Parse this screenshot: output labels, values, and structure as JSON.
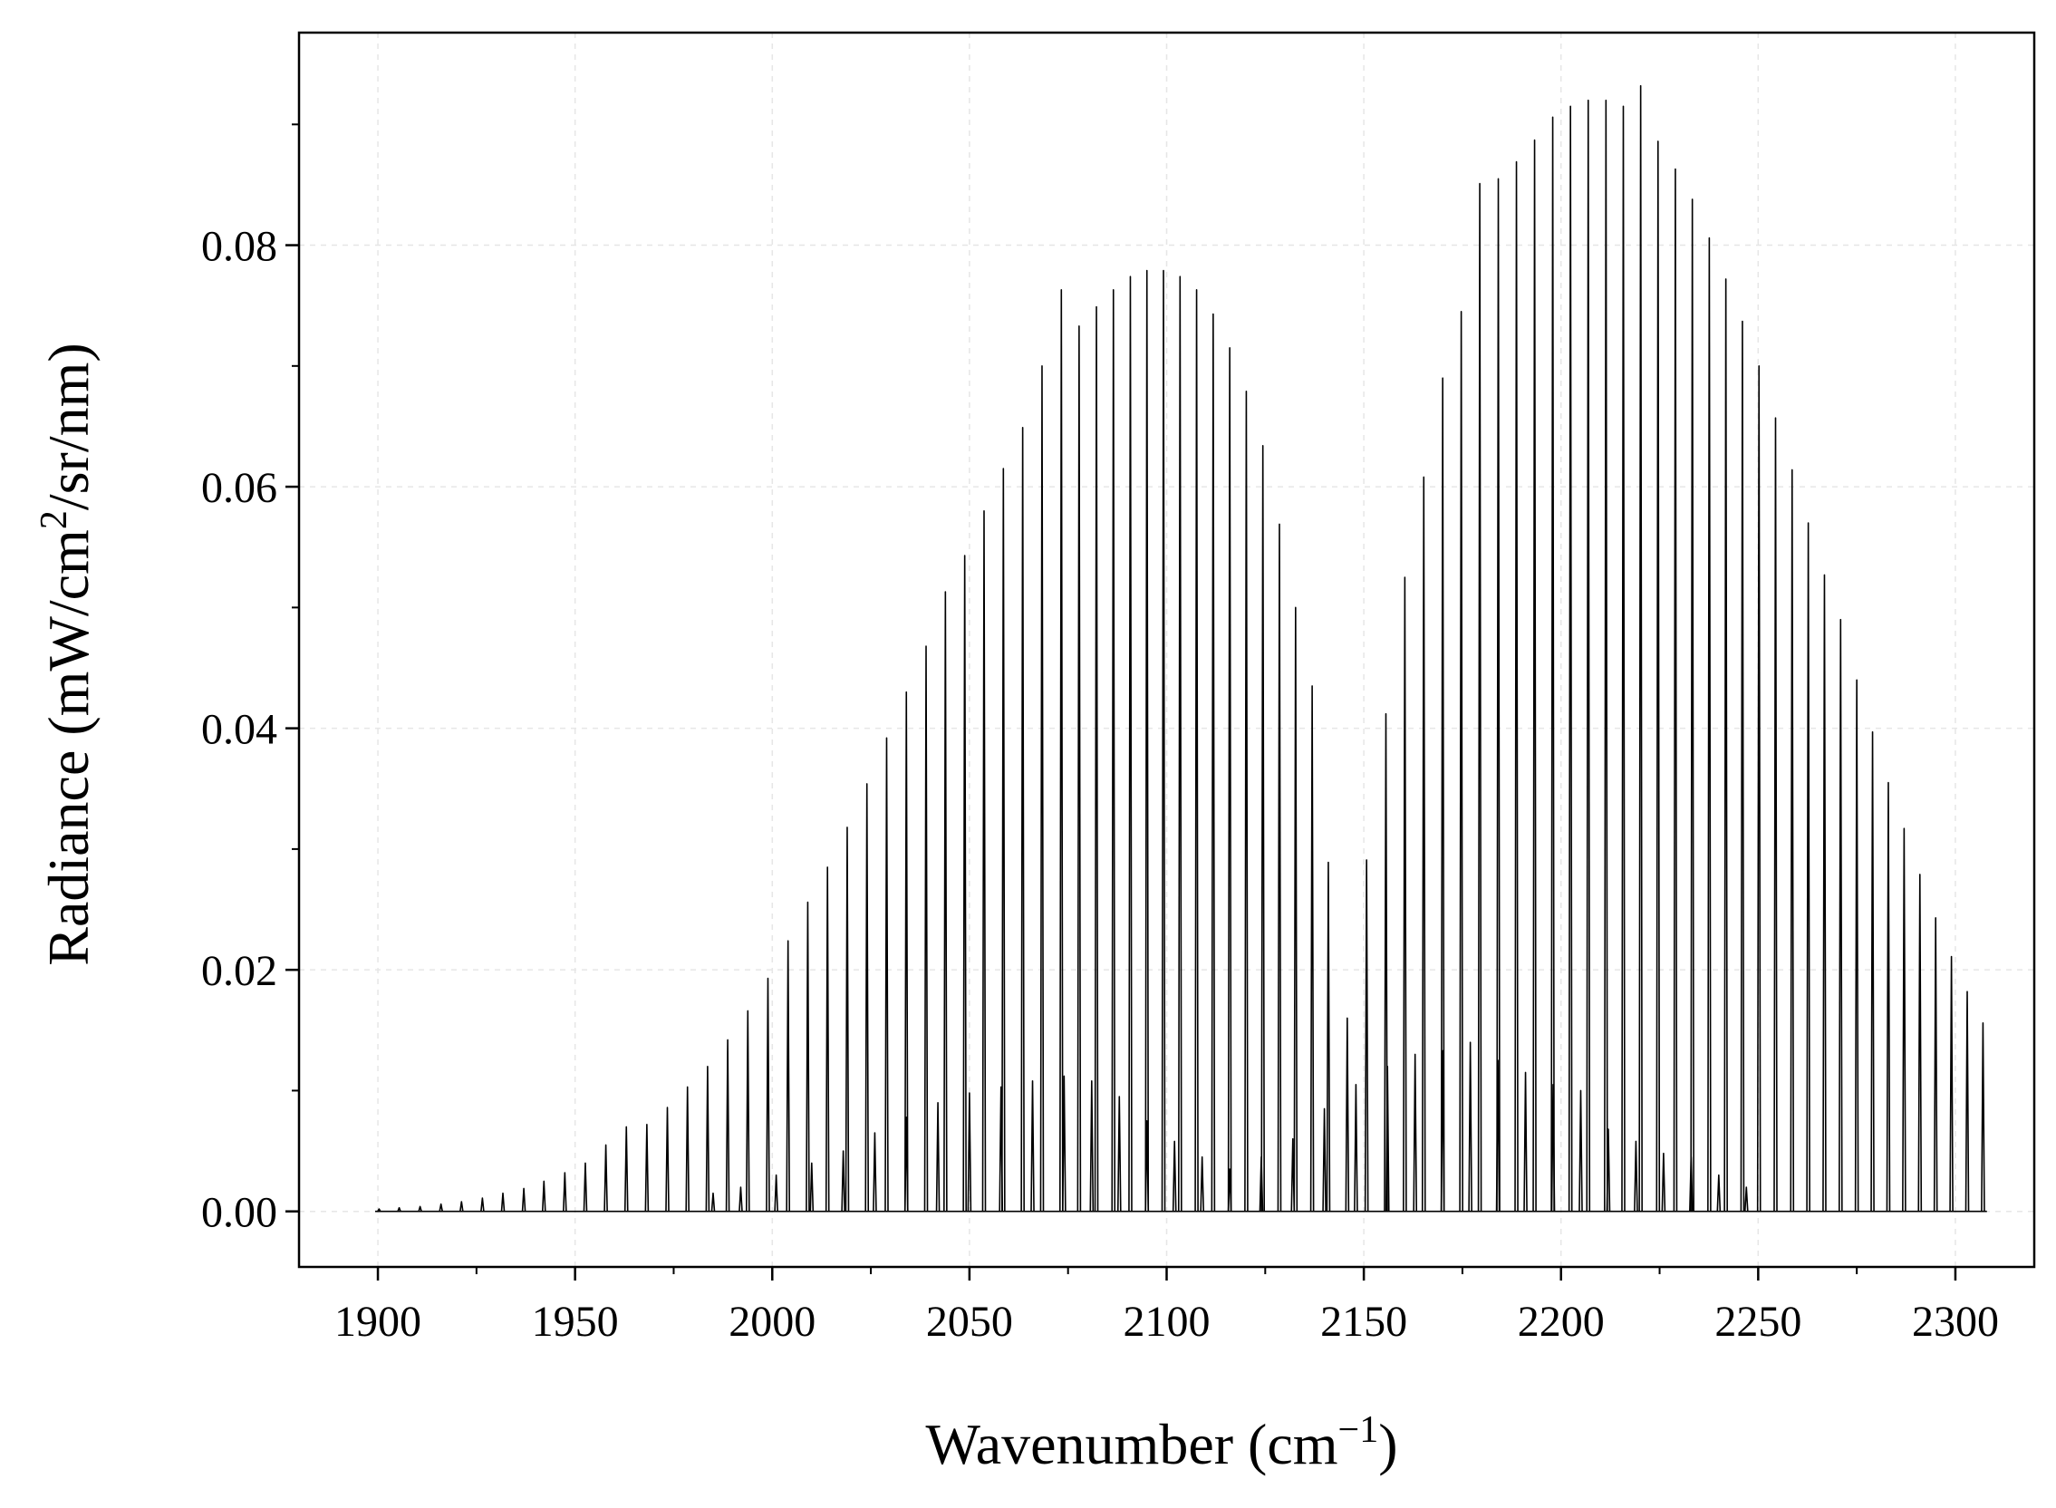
{
  "chart_data": {
    "type": "line",
    "title": "",
    "xlabel_main": "Wavenumber (cm",
    "xlabel_sup": "−1",
    "xlabel_end": ")",
    "ylabel_main": "Radiance (mW/cm",
    "ylabel_sup": "2",
    "ylabel_end": "/sr/nm)",
    "xlim": [
      1880,
      2320
    ],
    "ylim": [
      -0.0046,
      0.0976
    ],
    "xticks": [
      1900,
      1950,
      2000,
      2050,
      2100,
      2150,
      2200,
      2250,
      2300
    ],
    "xtick_labels": [
      "1900",
      "1950",
      "2000",
      "2050",
      "2100",
      "2150",
      "2200",
      "2250",
      "2300"
    ],
    "yticks": [
      0.0,
      0.02,
      0.04,
      0.06,
      0.08
    ],
    "ytick_labels": [
      "0.00",
      "0.02",
      "0.04",
      "0.06",
      "0.08"
    ],
    "grid": true,
    "line_color": "#000000",
    "series": [
      {
        "style": "line-spectrum",
        "lines": [
          [
            1900.3,
            0.0002
          ],
          [
            1905.4,
            0.0003
          ],
          [
            1910.7,
            0.0004
          ],
          [
            1916.0,
            0.0006
          ],
          [
            1921.2,
            0.0008
          ],
          [
            1926.5,
            0.0011
          ],
          [
            1931.7,
            0.0015
          ],
          [
            1937.0,
            0.0019
          ],
          [
            1942.1,
            0.0025
          ],
          [
            1947.4,
            0.0032
          ],
          [
            1952.6,
            0.004
          ],
          [
            1957.8,
            0.0055
          ],
          [
            1963.0,
            0.007
          ],
          [
            1968.2,
            0.0072
          ],
          [
            1973.4,
            0.0086
          ],
          [
            1978.5,
            0.0103
          ],
          [
            1983.6,
            0.012
          ],
          [
            1988.7,
            0.0142
          ],
          [
            1993.8,
            0.0166
          ],
          [
            1998.9,
            0.0193
          ],
          [
            2004.0,
            0.0224
          ],
          [
            2009.0,
            0.0256
          ],
          [
            2014.0,
            0.0285
          ],
          [
            2019.0,
            0.0318
          ],
          [
            2024.0,
            0.0354
          ],
          [
            2029.0,
            0.0392
          ],
          [
            2034.0,
            0.043
          ],
          [
            2039.0,
            0.0468
          ],
          [
            2043.9,
            0.0513
          ],
          [
            2048.8,
            0.0543
          ],
          [
            2053.7,
            0.058
          ],
          [
            2058.6,
            0.0615
          ],
          [
            2063.5,
            0.0649
          ],
          [
            2068.4,
            0.07
          ],
          [
            2073.3,
            0.0763
          ],
          [
            2077.8,
            0.0733
          ],
          [
            2082.2,
            0.0749
          ],
          [
            2086.5,
            0.0763
          ],
          [
            2090.8,
            0.0774
          ],
          [
            2095.0,
            0.0779
          ],
          [
            2099.2,
            0.0779
          ],
          [
            2103.4,
            0.0774
          ],
          [
            2107.6,
            0.0763
          ],
          [
            2111.8,
            0.0743
          ],
          [
            2116.0,
            0.0715
          ],
          [
            2120.2,
            0.0679
          ],
          [
            2124.4,
            0.0634
          ],
          [
            2128.6,
            0.0569
          ],
          [
            2132.7,
            0.05
          ],
          [
            2136.9,
            0.0435
          ],
          [
            2141.0,
            0.0289
          ],
          [
            2145.8,
            0.016
          ],
          [
            2150.7,
            0.0291
          ],
          [
            2155.6,
            0.0412
          ],
          [
            2160.4,
            0.0525
          ],
          [
            2165.2,
            0.0608
          ],
          [
            2170.0,
            0.069
          ],
          [
            2174.7,
            0.0745
          ],
          [
            2179.4,
            0.0851
          ],
          [
            2184.1,
            0.0855
          ],
          [
            2188.7,
            0.0869
          ],
          [
            2193.3,
            0.0887
          ],
          [
            2197.9,
            0.0906
          ],
          [
            2202.4,
            0.0915
          ],
          [
            2206.9,
            0.092
          ],
          [
            2211.4,
            0.092
          ],
          [
            2215.8,
            0.0915
          ],
          [
            2220.2,
            0.0932
          ],
          [
            2224.6,
            0.0886
          ],
          [
            2229.0,
            0.0863
          ],
          [
            2233.3,
            0.0838
          ],
          [
            2237.6,
            0.0806
          ],
          [
            2241.8,
            0.0772
          ],
          [
            2246.0,
            0.0737
          ],
          [
            2250.2,
            0.07
          ],
          [
            2254.4,
            0.0657
          ],
          [
            2258.6,
            0.0614
          ],
          [
            2262.7,
            0.057
          ],
          [
            2266.8,
            0.0527
          ],
          [
            2270.9,
            0.049
          ],
          [
            2275.0,
            0.044
          ],
          [
            2279.0,
            0.0397
          ],
          [
            2283.0,
            0.0355
          ],
          [
            2287.0,
            0.0317
          ],
          [
            2291.0,
            0.0279
          ],
          [
            2295.0,
            0.0243
          ],
          [
            2299.0,
            0.0211
          ],
          [
            2303.0,
            0.0182
          ],
          [
            2307.0,
            0.0156
          ]
        ]
      },
      {
        "style": "line-spectrum-weak",
        "lines": [
          [
            1985.0,
            0.0015
          ],
          [
            1992.0,
            0.002
          ],
          [
            2001.0,
            0.003
          ],
          [
            2010.0,
            0.004
          ],
          [
            2018.0,
            0.005
          ],
          [
            2026.0,
            0.0065
          ],
          [
            2034.0,
            0.0078
          ],
          [
            2042.0,
            0.009
          ],
          [
            2050.0,
            0.0098
          ],
          [
            2058.0,
            0.0103
          ],
          [
            2066.0,
            0.0108
          ],
          [
            2074.0,
            0.0112
          ],
          [
            2081.0,
            0.0108
          ],
          [
            2088.0,
            0.0095
          ],
          [
            2095.0,
            0.0075
          ],
          [
            2102.0,
            0.0058
          ],
          [
            2109.0,
            0.0045
          ],
          [
            2116.0,
            0.0035
          ],
          [
            2124.0,
            0.0045
          ],
          [
            2132.0,
            0.006
          ],
          [
            2140.0,
            0.0085
          ],
          [
            2148.0,
            0.0105
          ],
          [
            2156.0,
            0.012
          ],
          [
            2163.0,
            0.013
          ],
          [
            2170.0,
            0.0133
          ],
          [
            2177.0,
            0.014
          ],
          [
            2184.0,
            0.0125
          ],
          [
            2191.0,
            0.0115
          ],
          [
            2198.0,
            0.0105
          ],
          [
            2205.0,
            0.01
          ],
          [
            2212.0,
            0.0068
          ],
          [
            2219.0,
            0.0058
          ],
          [
            2226.0,
            0.0048
          ],
          [
            2233.0,
            0.0045
          ],
          [
            2240.0,
            0.003
          ],
          [
            2247.0,
            0.002
          ]
        ]
      }
    ]
  }
}
